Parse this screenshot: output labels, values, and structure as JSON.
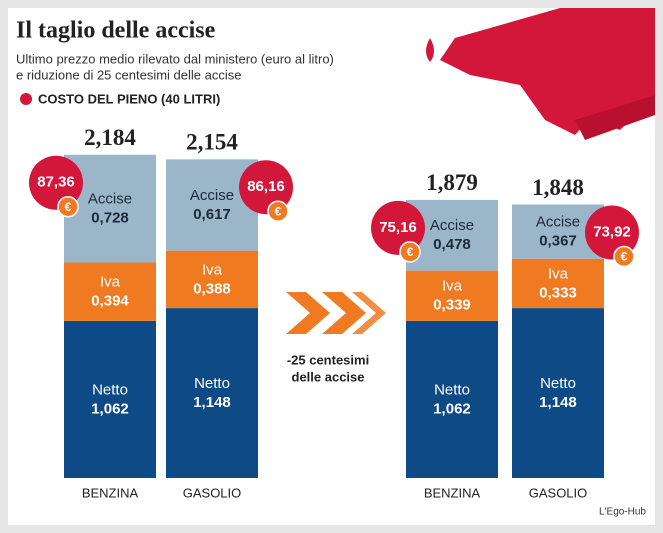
{
  "chart_data": {
    "type": "stacked_bar",
    "title": "Il taglio delle accise",
    "subtitle": [
      "Ultimo prezzo medio rilevato dal ministero (euro al litro)",
      "e riduzione di 25 centesimi delle accise"
    ],
    "categories": [
      "BENZINA",
      "GASOLIO",
      "BENZINA",
      "GASOLIO"
    ],
    "series": [
      {
        "name": "Netto",
        "color": "#0e4b86",
        "values": [
          1.062,
          1.148,
          1.062,
          1.148
        ],
        "value_labels": [
          "1,062",
          "1,148",
          "1,062",
          "1,148"
        ]
      },
      {
        "name": "Iva",
        "color": "#f07a22",
        "values": [
          0.394,
          0.388,
          0.339,
          0.333
        ],
        "value_labels": [
          "0,394",
          "0,388",
          "0,339",
          "0,333"
        ]
      },
      {
        "name": "Accise",
        "color": "#9bb5c9",
        "values": [
          0.728,
          0.617,
          0.478,
          0.367
        ],
        "value_labels": [
          "0,728",
          "0,617",
          "0,478",
          "0,367"
        ]
      }
    ],
    "totals": {
      "values": [
        2.184,
        2.154,
        1.879,
        1.848
      ],
      "value_labels": [
        "2,184",
        "2,154",
        "1,879",
        "1,848"
      ]
    },
    "full_tank": {
      "name": "COSTO DEL PIENO (40 LITRI)",
      "color": "#d3173a",
      "values": [
        87.36,
        86.16,
        75.16,
        73.92
      ],
      "value_labels": [
        "87,36",
        "86,16",
        "75,16",
        "73,92"
      ],
      "symbol": "€"
    },
    "annotation": [
      "-25 centesimi",
      "delle accise"
    ],
    "source": "L'Ego-Hub"
  }
}
